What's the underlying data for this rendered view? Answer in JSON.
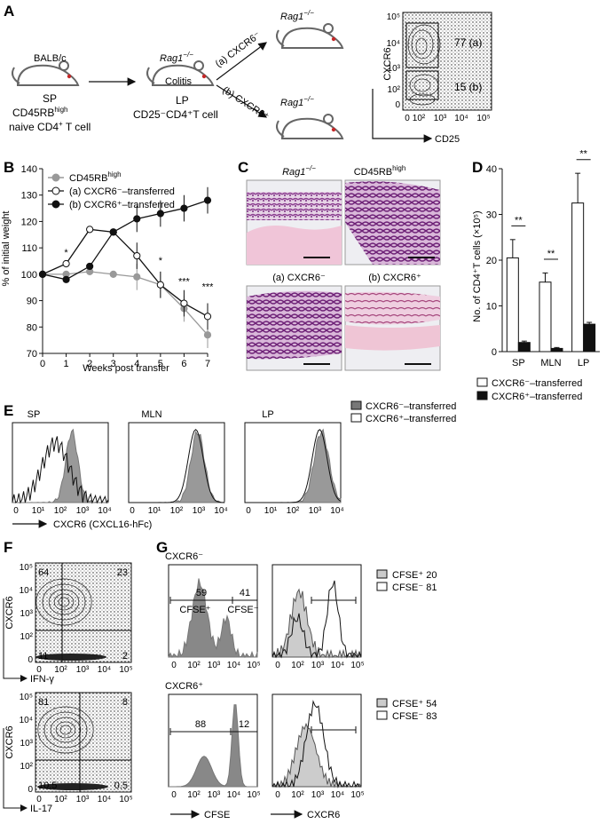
{
  "panels": {
    "A": "A",
    "B": "B",
    "C": "C",
    "D": "D",
    "E": "E",
    "F": "F",
    "G": "G"
  },
  "A": {
    "donor": "BALB/c",
    "donor_tissue": "SP",
    "donor_cells_line1": "CD45RB",
    "donor_cells_sup": "high",
    "donor_cells_line2a": "naive CD4",
    "donor_cells_line2sup": "+",
    "donor_cells_line2b": " T cell",
    "recipient1": "Rag1",
    "recipient1_sup": "−/−",
    "colitis": "Colitis",
    "recipient1_tissue": "LP",
    "recipient1_cells": "CD25⁻CD4⁺T cell",
    "arrow_a": "(a) CXCR6⁻",
    "arrow_b": "(b) CXCR6⁺",
    "recipient2": "Rag1",
    "recipient2_sup": "−/−",
    "recipient3": "Rag1",
    "recipient3_sup": "−/−",
    "flow_ylabel": "CXCR6",
    "flow_xlabel": "CD25",
    "gate_a": "77 (a)",
    "gate_b": "15 (b)",
    "flow_yticks": [
      "10⁵",
      "10⁴",
      "10³",
      "10²",
      "0"
    ],
    "flow_xticks": [
      "0",
      "10²",
      "10³",
      "10⁴",
      "10⁵"
    ]
  },
  "chart_data": [
    {
      "type": "line",
      "panel": "B",
      "xlabel": "Weeks post transfer",
      "ylabel": "% of initial weight",
      "x": [
        0,
        1,
        2,
        3,
        4,
        5,
        6,
        7
      ],
      "ylim": [
        70,
        140
      ],
      "yticks": [
        70,
        80,
        90,
        100,
        110,
        120,
        130,
        140
      ],
      "series": [
        {
          "name": "CD45RBhigh",
          "values": [
            100,
            100,
            101,
            100,
            99,
            96,
            87,
            77
          ],
          "color": "#999999"
        },
        {
          "name": "(a) CXCR6⁻–transferred",
          "values": [
            100,
            104,
            117,
            116,
            107,
            96,
            89,
            84
          ],
          "color": "#ffffff"
        },
        {
          "name": "(b) CXCR6⁺–transferred",
          "values": [
            100,
            98,
            103,
            116,
            121,
            123,
            125,
            128
          ],
          "color": "#111111"
        }
      ],
      "annotations": [
        "*",
        "*",
        "***",
        "***"
      ],
      "legend_items": [
        "CD45RB",
        "(a) CXCR6⁻–transferred",
        "(b) CXCR6⁺–transferred"
      ],
      "legend_sup": "high"
    },
    {
      "type": "bar",
      "panel": "D",
      "ylabel": "No. of CD4⁺T cells (×10⁵)",
      "categories": [
        "SP",
        "MLN",
        "LP"
      ],
      "ylim": [
        0,
        40
      ],
      "yticks": [
        0,
        10,
        20,
        30,
        40
      ],
      "series": [
        {
          "name": "CXCR6⁻–transferred",
          "values": [
            20.5,
            15.2,
            32.5
          ],
          "errors": [
            4,
            2,
            6.5
          ],
          "color": "#ffffff"
        },
        {
          "name": "CXCR6⁺–transferred",
          "values": [
            2.0,
            0.7,
            6.0
          ],
          "errors": [
            0.3,
            0.2,
            0.4
          ],
          "color": "#111111"
        }
      ],
      "annotations": [
        "**",
        "**",
        "**"
      ]
    }
  ],
  "C": {
    "tl": "Rag1",
    "tl_sup": "−/−",
    "tr": "CD45RB",
    "tr_sup": "high",
    "bl": "(a) CXCR6⁻",
    "br": "(b) CXCR6⁺"
  },
  "E": {
    "titles": [
      "SP",
      "MLN",
      "LP"
    ],
    "xticks": [
      "0",
      "10¹",
      "10²",
      "10³",
      "10⁴"
    ],
    "xlabel": "CXCR6 (CXCL16-hFc)",
    "legend": [
      "CXCR6⁻–transferred",
      "CXCR6⁺–transferred"
    ]
  },
  "F": {
    "ylabel": "CXCR6",
    "top_xlabel": "IFN-γ",
    "bot_xlabel": "IL-17",
    "top_q": [
      "64",
      "23",
      "11",
      "2"
    ],
    "bot_q": [
      "81",
      "8",
      "10.5",
      "0.5"
    ],
    "yticks": [
      "10⁵",
      "10⁴",
      "10³",
      "10²",
      "0"
    ],
    "xticks": [
      "0",
      "10²",
      "10³",
      "10⁴",
      "10⁵"
    ]
  },
  "G": {
    "row1": "CXCR6⁻",
    "row2": "CXCR6⁺",
    "r1_left_a": "59",
    "r1_left_b": "41",
    "r1_cfse_pos": "CFSE⁺",
    "r1_cfse_neg": "CFSE⁻",
    "r2_left_a": "88",
    "r2_left_b": "12",
    "legend1": [
      "CFSE⁺ 20",
      "CFSE⁻ 81"
    ],
    "legend2": [
      "CFSE⁺ 54",
      "CFSE⁻ 83"
    ],
    "xlabel_left": "CFSE",
    "xlabel_right": "CXCR6",
    "xticks": [
      "0",
      "10²",
      "10³",
      "10⁴",
      "10⁵"
    ]
  }
}
